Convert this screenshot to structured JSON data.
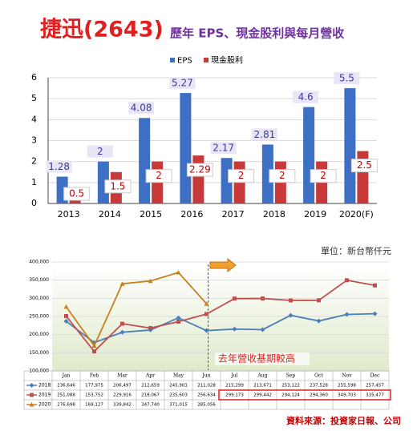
{
  "chart_data": [
    {
      "type": "bar",
      "title": "捷迅(2643)",
      "subtitle": "歷年 EPS、現金股利與每月營收",
      "categories": [
        "2013",
        "2014",
        "2015",
        "2016",
        "2017",
        "2018",
        "2019",
        "2020(F)"
      ],
      "series": [
        {
          "name": "EPS",
          "color": "#3d6fc4",
          "values": [
            1.28,
            2,
            4.08,
            5.27,
            2.17,
            2.81,
            4.6,
            5.5
          ]
        },
        {
          "name": "現金股利",
          "color": "#c83a3a",
          "values": [
            0.5,
            1.5,
            2,
            2.29,
            2,
            2,
            2,
            2.5
          ]
        }
      ],
      "ylim": [
        0,
        6
      ],
      "yticks": [
        0,
        1,
        2,
        3,
        4,
        5,
        6
      ],
      "grid": true,
      "legend": "top"
    },
    {
      "type": "line",
      "unit": "單位：新台幣仟元",
      "annotation": "去年營收基期較高",
      "source": "資料來源：投資家日報、公司",
      "categories": [
        "Jan",
        "Feb",
        "Mar",
        "Apr",
        "May",
        "Jun",
        "Jul",
        "Aug",
        "Sep",
        "Oct",
        "Nov",
        "Dec"
      ],
      "series": [
        {
          "name": "2018",
          "color": "#4a7ebb",
          "marker": "diamond",
          "values": [
            236646,
            177975,
            206497,
            212659,
            245901,
            211028,
            215299,
            213671,
            253122,
            237528,
            255598,
            257457
          ],
          "value_labels": [
            "236,646",
            "177,975",
            "206,497",
            "212,659",
            "245,901",
            "211,028",
            "215,299",
            "213,671",
            "253,122",
            "237,528",
            "255,598",
            "257,457"
          ]
        },
        {
          "name": "2019",
          "color": "#c0504d",
          "marker": "square",
          "values": [
            251088,
            153752,
            229916,
            218067,
            235603,
            256634,
            299173,
            299442,
            294124,
            294360,
            349703,
            335477
          ],
          "value_labels": [
            "251,088",
            "153,752",
            "229,916",
            "218,067",
            "235,603",
            "256,634",
            "299,173",
            "299,442",
            "294,124",
            "294,360",
            "349,703",
            "335,477"
          ]
        },
        {
          "name": "2020",
          "color": "#c7801e",
          "marker": "triangle",
          "values": [
            276698,
            169127,
            339842,
            347740,
            371015,
            285056,
            null,
            null,
            null,
            null,
            null,
            null
          ],
          "value_labels": [
            "276,698",
            "169,127",
            "339,842",
            "347,740",
            "371,015",
            "285,056",
            null,
            null,
            null,
            null,
            null,
            null
          ]
        }
      ],
      "ylim": [
        100000,
        400000
      ],
      "yticks": [
        {
          "value": 100000,
          "label": "100,000"
        },
        {
          "value": 150000,
          "label": "150,000"
        },
        {
          "value": 200000,
          "label": "200,000"
        },
        {
          "value": 250000,
          "label": "250,000"
        },
        {
          "value": 300000,
          "label": "300,000"
        },
        {
          "value": 350000,
          "label": "350,000"
        },
        {
          "value": 400000,
          "label": "400,000"
        }
      ],
      "grid": true
    }
  ]
}
